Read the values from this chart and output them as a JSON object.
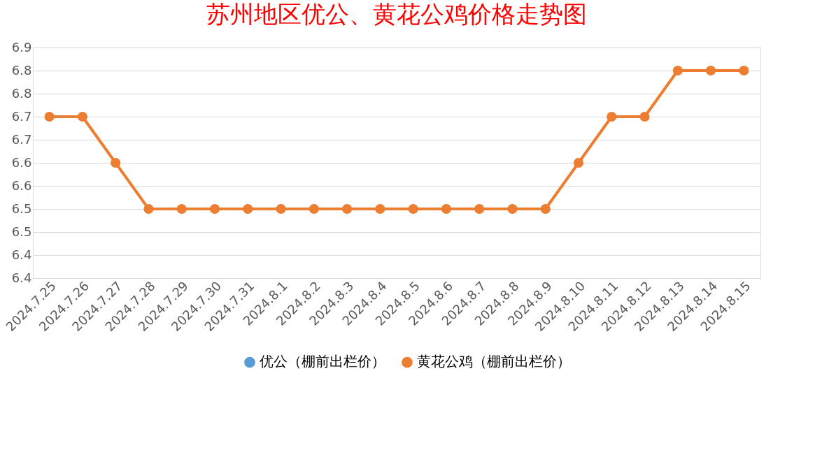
{
  "chart_data": {
    "type": "line",
    "title": "苏州地区优公、黄花公鸡价格走势图",
    "categories": [
      "2024.7.25",
      "2024.7.26",
      "2024.7.27",
      "2024.7.28",
      "2024.7.29",
      "2024.7.30",
      "2024.7.31",
      "2024.8.1",
      "2024.8.2",
      "2024.8.3",
      "2024.8.4",
      "2024.8.5",
      "2024.8.6",
      "2024.8.7",
      "2024.8.8",
      "2024.8.9",
      "2024.8.10",
      "2024.8.11",
      "2024.8.12",
      "2024.8.13",
      "2024.8.14",
      "2024.8.15"
    ],
    "series": [
      {
        "name": "优公（棚前出栏价）",
        "color": "#5b9bd5",
        "values": [
          null,
          null,
          null,
          null,
          null,
          null,
          null,
          null,
          null,
          null,
          null,
          null,
          null,
          null,
          null,
          null,
          null,
          null,
          null,
          null,
          null,
          null
        ]
      },
      {
        "name": "黄花公鸡（棚前出栏价）",
        "color": "#ed7d31",
        "values": [
          6.75,
          6.75,
          6.65,
          6.55,
          6.55,
          6.55,
          6.55,
          6.55,
          6.55,
          6.55,
          6.55,
          6.55,
          6.55,
          6.55,
          6.55,
          6.55,
          6.65,
          6.75,
          6.75,
          6.85,
          6.85,
          6.85
        ]
      }
    ],
    "ylim": [
      6.4,
      6.9
    ],
    "yticks": [
      {
        "value": 6.4,
        "label": "6.4"
      },
      {
        "value": 6.45,
        "label": "6.4"
      },
      {
        "value": 6.5,
        "label": "6.5"
      },
      {
        "value": 6.55,
        "label": "6.5"
      },
      {
        "value": 6.6,
        "label": "6.6"
      },
      {
        "value": 6.65,
        "label": "6.6"
      },
      {
        "value": 6.7,
        "label": "6.7"
      },
      {
        "value": 6.75,
        "label": "6.7"
      },
      {
        "value": 6.8,
        "label": "6.8"
      },
      {
        "value": 6.85,
        "label": "6.8"
      },
      {
        "value": 6.9,
        "label": "6.9"
      }
    ],
    "grid": "y",
    "legend": "bottom",
    "marker": "circle",
    "line_style": "solid"
  }
}
